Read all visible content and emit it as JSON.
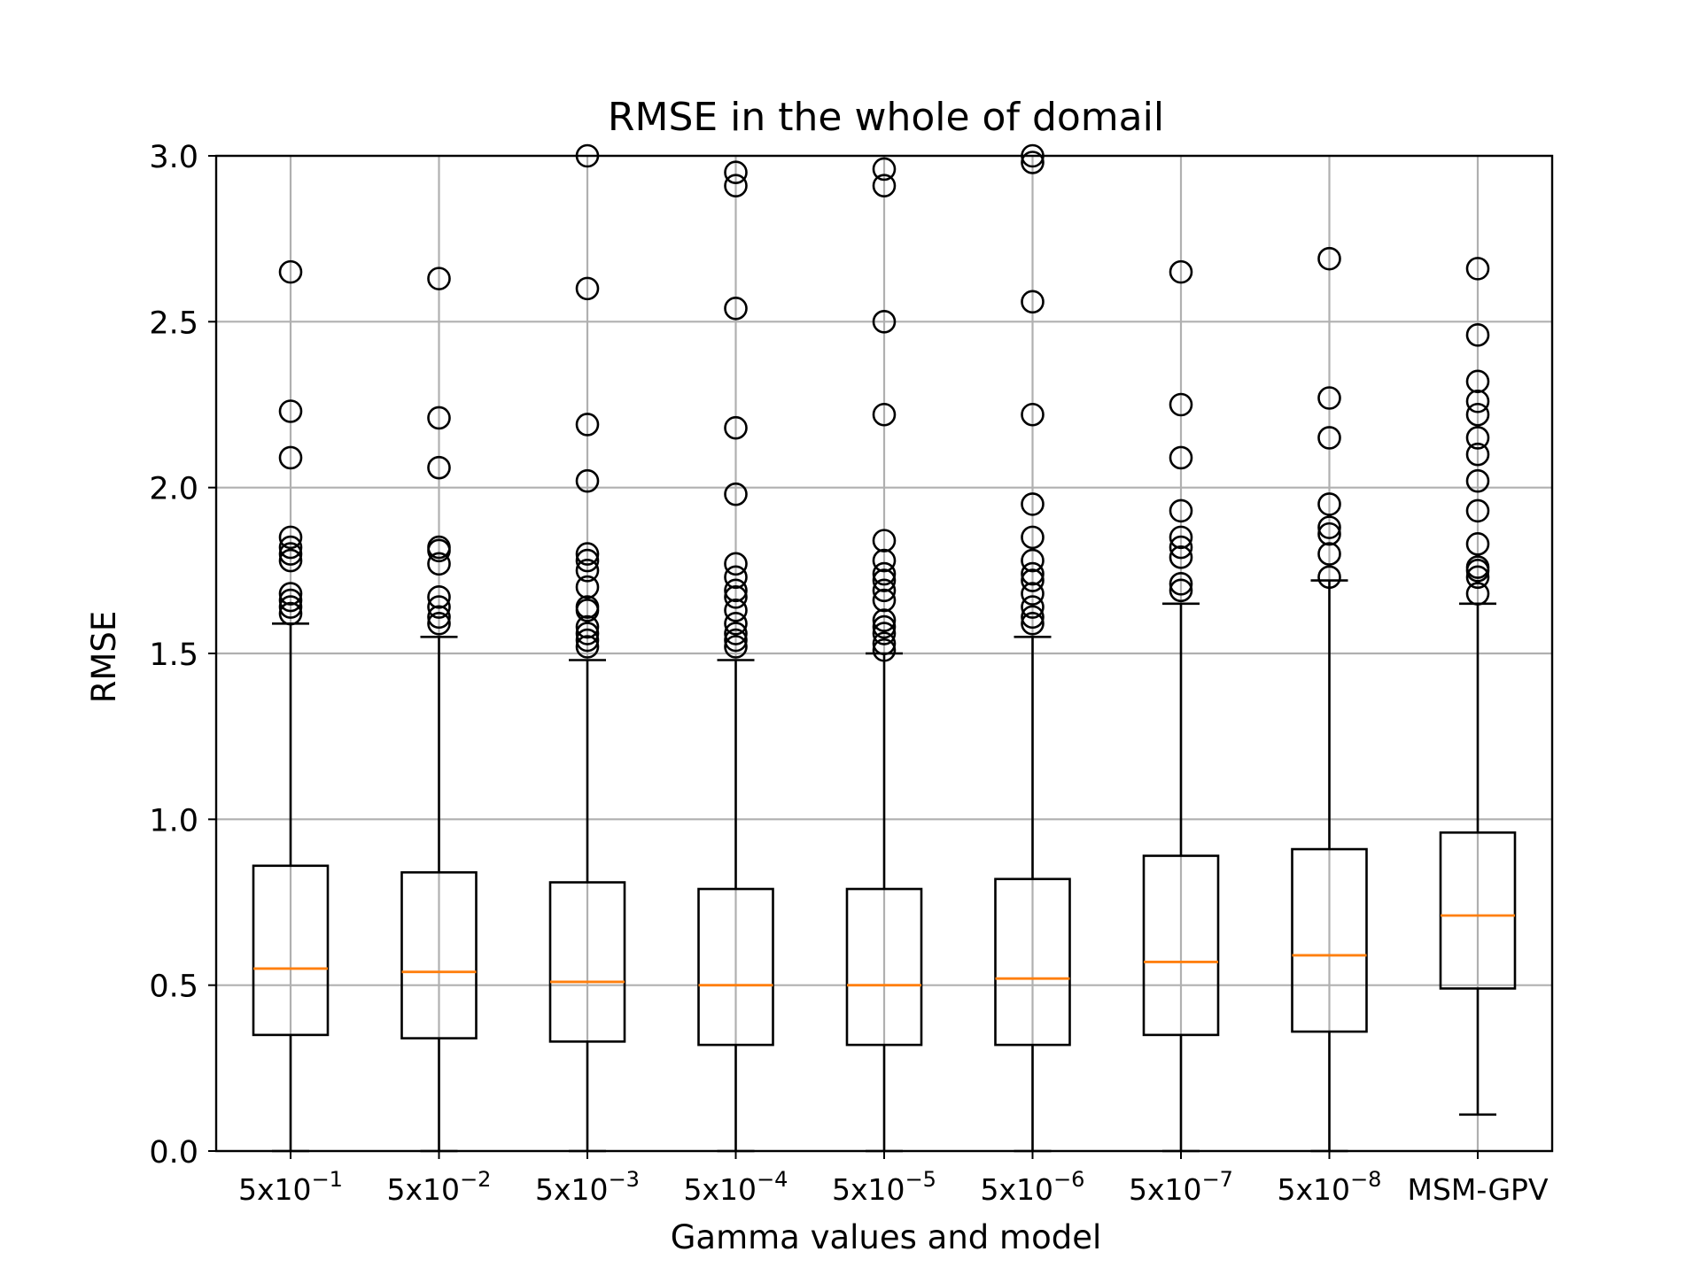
{
  "chart_data": {
    "type": "box",
    "title": "RMSE in the whole of domail",
    "xlabel": "Gamma values and model",
    "ylabel": "RMSE",
    "ylim": [
      0.0,
      3.0
    ],
    "yticks": [
      "0.0",
      "0.5",
      "1.0",
      "1.5",
      "2.0",
      "2.5",
      "3.0"
    ],
    "grid": true,
    "categories": [
      {
        "base": "5x10",
        "exp": "−1"
      },
      {
        "base": "5x10",
        "exp": "−2"
      },
      {
        "base": "5x10",
        "exp": "−3"
      },
      {
        "base": "5x10",
        "exp": "−4"
      },
      {
        "base": "5x10",
        "exp": "−5"
      },
      {
        "base": "5x10",
        "exp": "−6"
      },
      {
        "base": "5x10",
        "exp": "−7"
      },
      {
        "base": "5x10",
        "exp": "−8"
      },
      {
        "base": "MSM-GPV",
        "exp": ""
      }
    ],
    "boxes": [
      {
        "whislo": 0.0,
        "q1": 0.35,
        "med": 0.55,
        "q3": 0.86,
        "whishi": 1.59,
        "fliers": [
          1.62,
          1.64,
          1.66,
          1.68,
          1.78,
          1.8,
          1.82,
          1.85,
          2.09,
          2.23,
          2.65
        ]
      },
      {
        "whislo": 0.0,
        "q1": 0.34,
        "med": 0.54,
        "q3": 0.84,
        "whishi": 1.55,
        "fliers": [
          1.59,
          1.61,
          1.64,
          1.67,
          1.77,
          1.81,
          1.82,
          2.06,
          2.21,
          2.63
        ]
      },
      {
        "whislo": 0.0,
        "q1": 0.33,
        "med": 0.51,
        "q3": 0.81,
        "whishi": 1.48,
        "fliers": [
          1.52,
          1.54,
          1.56,
          1.58,
          1.63,
          1.64,
          1.7,
          1.75,
          1.78,
          1.8,
          2.02,
          2.19,
          2.6,
          3.0
        ]
      },
      {
        "whislo": 0.0,
        "q1": 0.32,
        "med": 0.5,
        "q3": 0.79,
        "whishi": 1.48,
        "fliers": [
          1.52,
          1.54,
          1.56,
          1.59,
          1.63,
          1.67,
          1.69,
          1.73,
          1.77,
          1.98,
          2.18,
          2.54,
          2.91,
          2.95
        ]
      },
      {
        "whislo": 0.0,
        "q1": 0.32,
        "med": 0.5,
        "q3": 0.79,
        "whishi": 1.5,
        "fliers": [
          1.51,
          1.53,
          1.56,
          1.58,
          1.6,
          1.66,
          1.69,
          1.72,
          1.74,
          1.78,
          1.84,
          2.22,
          2.5,
          2.91,
          2.96
        ]
      },
      {
        "whislo": 0.0,
        "q1": 0.32,
        "med": 0.52,
        "q3": 0.82,
        "whishi": 1.55,
        "fliers": [
          1.59,
          1.61,
          1.64,
          1.68,
          1.72,
          1.74,
          1.78,
          1.85,
          1.95,
          2.22,
          2.56,
          2.98,
          3.0
        ]
      },
      {
        "whislo": 0.0,
        "q1": 0.35,
        "med": 0.57,
        "q3": 0.89,
        "whishi": 1.65,
        "fliers": [
          1.69,
          1.71,
          1.79,
          1.82,
          1.85,
          1.93,
          2.09,
          2.25,
          2.65
        ]
      },
      {
        "whislo": 0.0,
        "q1": 0.36,
        "med": 0.59,
        "q3": 0.91,
        "whishi": 1.72,
        "fliers": [
          1.73,
          1.8,
          1.86,
          1.88,
          1.95,
          2.15,
          2.27,
          2.69
        ]
      },
      {
        "whislo": 0.11,
        "q1": 0.49,
        "med": 0.71,
        "q3": 0.96,
        "whishi": 1.65,
        "fliers": [
          1.68,
          1.73,
          1.75,
          1.76,
          1.83,
          1.93,
          2.02,
          2.1,
          2.15,
          2.22,
          2.26,
          2.32,
          2.46,
          2.66
        ]
      }
    ],
    "colors": {
      "box": "#000000",
      "median": "#ff7f0e",
      "grid": "#b0b0b0",
      "flier": "#000000"
    }
  }
}
